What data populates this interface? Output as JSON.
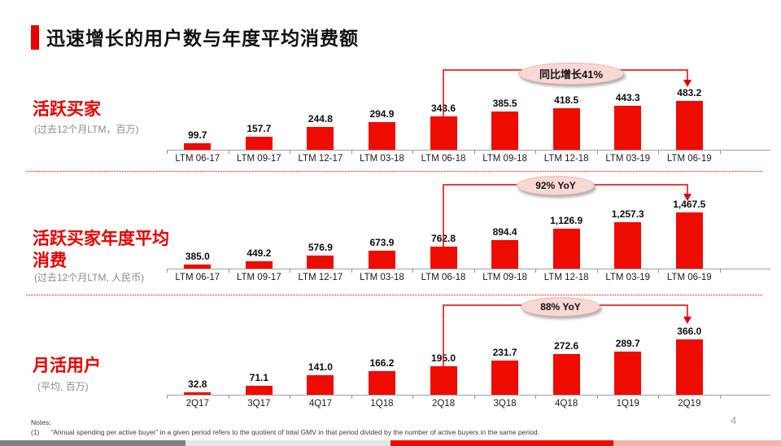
{
  "header": {
    "title": "迅速增长的用户数与年度平均消费额",
    "accent_color": "#e60000"
  },
  "chart_data": [
    {
      "type": "bar",
      "title": "活跃买家",
      "title_lines": [
        "活跃买家"
      ],
      "subtitle": "(过去12个月LTM，百万)",
      "callout": "同比增长41%",
      "categories": [
        "LTM 06-17",
        "LTM 09-17",
        "LTM 12-17",
        "LTM 03-18",
        "LTM 06-18",
        "LTM 09-18",
        "LTM 12-18",
        "LTM 03-19",
        "LTM 06-19"
      ],
      "values": [
        99.7,
        157.7,
        244.8,
        294.9,
        343.6,
        385.5,
        418.5,
        443.3,
        483.2
      ],
      "value_labels": [
        "99.7",
        "157.7",
        "244.8",
        "294.9",
        "343.6",
        "385.5",
        "418.5",
        "443.3",
        "483.2"
      ],
      "xlabel": "",
      "ylabel": "活跃买家（百万）",
      "ylim": [
        40,
        500
      ],
      "grid": "off",
      "legend": "none",
      "bar_color": "#ee0b00"
    },
    {
      "type": "bar",
      "title": "活跃买家年度平均消费",
      "title_lines": [
        "活跃买家年度平均",
        "消费"
      ],
      "subtitle": "(过去12个月LTM, 人民币)",
      "callout": "92% YoY",
      "categories": [
        "LTM 06-17",
        "LTM 09-17",
        "LTM 12-17",
        "LTM 03-18",
        "LTM 06-18",
        "LTM 09-18",
        "LTM 12-18",
        "LTM 03-19",
        "LTM 06-19"
      ],
      "values": [
        385.0,
        449.2,
        576.9,
        673.9,
        762.8,
        894.4,
        1126.9,
        1257.3,
        1467.5
      ],
      "value_labels": [
        "385.0",
        "449.2",
        "576.9",
        "673.9",
        "762.8",
        "894.4",
        "1,126.9",
        "1,257.3",
        "1,467.5"
      ],
      "xlabel": "",
      "ylabel": "年度平均消费（人民币）",
      "ylim": [
        300,
        1500
      ],
      "grid": "off",
      "legend": "none",
      "bar_color": "#ee0b00"
    },
    {
      "type": "bar",
      "title": "月活用户",
      "title_lines": [
        "月活用户"
      ],
      "subtitle": "(平均, 百万)",
      "callout": "88% YoY",
      "categories": [
        "2Q17",
        "3Q17",
        "4Q17",
        "1Q18",
        "2Q18",
        "3Q18",
        "4Q18",
        "1Q19",
        "2Q19"
      ],
      "values": [
        32.8,
        71.1,
        141.0,
        166.2,
        195.0,
        231.7,
        272.6,
        289.7,
        366.0
      ],
      "value_labels": [
        "32.8",
        "71.1",
        "141.0",
        "166.2",
        "195.0",
        "231.7",
        "272.6",
        "289.7",
        "366.0"
      ],
      "xlabel": "",
      "ylabel": "月活用户（百万）",
      "ylim": [
        15,
        375
      ],
      "grid": "off",
      "legend": "none",
      "bar_color": "#ee0b00"
    }
  ],
  "footer": {
    "notes_heading": "Notes:",
    "note_1_number": "(1)",
    "note_1_text": "“Annual spending per active buyer” in a given period refers to the quotient of total GMV in that period divided by the number of active buyers in the same period.",
    "page_number": "4",
    "strip_colors": [
      "#7f7f7f",
      "#e6e6e6",
      "#ee0b00",
      "#f4b3ab"
    ]
  }
}
